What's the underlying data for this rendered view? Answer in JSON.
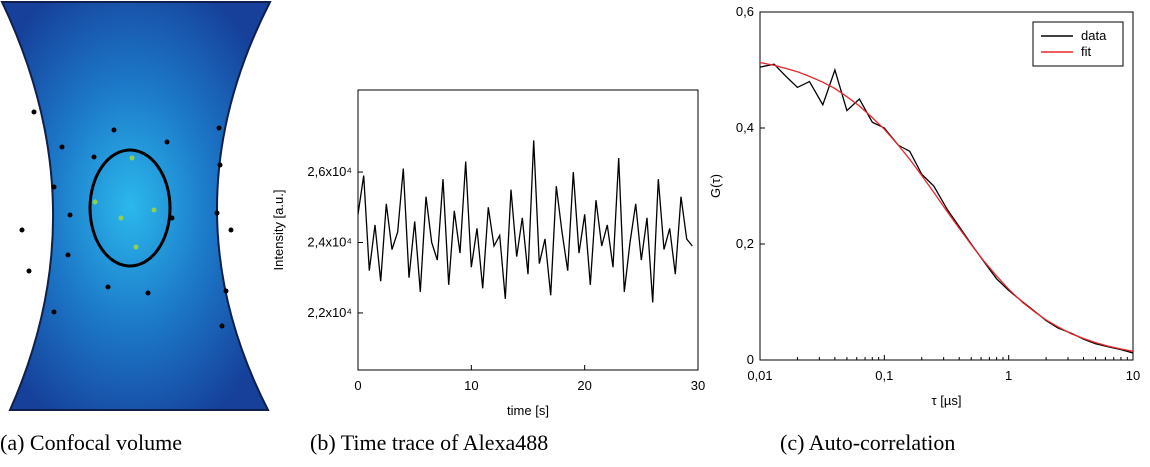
{
  "captions": [
    "(a) Confocal volume",
    "(b) Time trace of Alexa488",
    "(c) Auto-correlation"
  ],
  "chart_data": [
    {
      "type": "line",
      "x_label": "time [s]",
      "y_label": "Intensity [a.u.]",
      "x": [
        0,
        0.5,
        1,
        1.5,
        2,
        2.5,
        3,
        3.5,
        4,
        4.5,
        5,
        5.5,
        6,
        6.5,
        7,
        7.5,
        8,
        8.5,
        9,
        9.5,
        10,
        10.5,
        11,
        11.5,
        12,
        12.5,
        13,
        13.5,
        14,
        14.5,
        15,
        15.5,
        16,
        16.5,
        17,
        17.5,
        18,
        18.5,
        19,
        19.5,
        20,
        20.5,
        21,
        21.5,
        22,
        22.5,
        23,
        23.5,
        24,
        24.5,
        25,
        25.5,
        26,
        26.5,
        27,
        27.5,
        28,
        28.5,
        29,
        29.5
      ],
      "series": [
        {
          "color": "#000000",
          "values": [
            24800,
            25900,
            23200,
            24500,
            22900,
            25100,
            23800,
            24300,
            26100,
            23000,
            24600,
            22600,
            25300,
            24000,
            23500,
            25800,
            22800,
            24900,
            23700,
            26300,
            23300,
            24400,
            22700,
            25000,
            23900,
            24200,
            22400,
            25500,
            23600,
            24700,
            23100,
            26900,
            23400,
            24100,
            22500,
            25600,
            24300,
            23200,
            26000,
            23700,
            24800,
            22800,
            25200,
            23900,
            24500,
            23300,
            26400,
            22600,
            24000,
            25100,
            23500,
            24700,
            22300,
            25800,
            23800,
            24400,
            23100,
            25300,
            24100,
            23900
          ]
        }
      ],
      "xlim": [
        0,
        30
      ],
      "xticks": [
        0,
        10,
        20,
        30
      ],
      "ylim": [
        20380,
        28330
      ],
      "yticks": [
        {
          "value": 22000,
          "label": "2,2x10⁴"
        },
        {
          "value": 24000,
          "label": "2,4x10⁴"
        },
        {
          "value": 26000,
          "label": "2,6x10⁴"
        }
      ]
    },
    {
      "type": "line",
      "x_label": "τ [µs]",
      "y_label": "G(τ)",
      "log_x": true,
      "legend": "upper right",
      "x": [
        0.01,
        0.013,
        0.016,
        0.02,
        0.025,
        0.032,
        0.04,
        0.05,
        0.063,
        0.08,
        0.1,
        0.13,
        0.16,
        0.2,
        0.25,
        0.32,
        0.4,
        0.5,
        0.63,
        0.8,
        1,
        1.3,
        1.6,
        2,
        2.5,
        3.2,
        4,
        5,
        6.3,
        8,
        10
      ],
      "series": [
        {
          "name": "data",
          "color": "#000000",
          "values": [
            0.505,
            0.51,
            0.49,
            0.47,
            0.48,
            0.44,
            0.5,
            0.43,
            0.45,
            0.41,
            0.4,
            0.37,
            0.36,
            0.32,
            0.3,
            0.26,
            0.23,
            0.2,
            0.17,
            0.14,
            0.12,
            0.1,
            0.085,
            0.068,
            0.055,
            0.046,
            0.036,
            0.028,
            0.023,
            0.018,
            0.012
          ]
        },
        {
          "name": "fit",
          "color": "#e8262b",
          "values": [
            0.513,
            0.508,
            0.503,
            0.497,
            0.489,
            0.479,
            0.468,
            0.454,
            0.438,
            0.418,
            0.398,
            0.37,
            0.346,
            0.318,
            0.289,
            0.256,
            0.227,
            0.199,
            0.171,
            0.145,
            0.122,
            0.099,
            0.084,
            0.069,
            0.057,
            0.045,
            0.037,
            0.03,
            0.024,
            0.019,
            0.015
          ]
        }
      ],
      "xlim": [
        0.01,
        10
      ],
      "xticks": [
        {
          "value": 0.01,
          "label": "0,01"
        },
        {
          "value": 0.1,
          "label": "0,1"
        },
        1,
        10
      ],
      "ylim": [
        0,
        0.6
      ],
      "yticks": [
        0,
        {
          "value": 0.2,
          "label": "0,2"
        },
        {
          "value": 0.4,
          "label": "0,4"
        },
        {
          "value": 0.6,
          "label": "0,6"
        }
      ]
    }
  ]
}
